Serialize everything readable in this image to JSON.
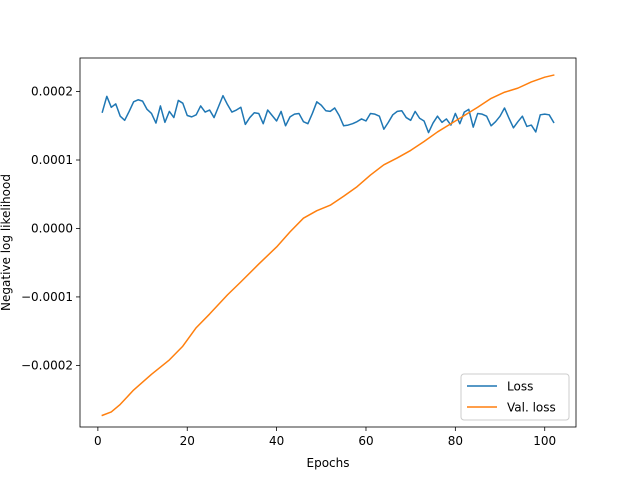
{
  "chart_data": {
    "type": "line",
    "title": "",
    "xlabel": "Epochs",
    "ylabel": "Negative log likelihood",
    "xlim": [
      -4,
      107
    ],
    "ylim": [
      -0.00029,
      0.000249
    ],
    "xticks": [
      0,
      20,
      40,
      60,
      80,
      100
    ],
    "xtick_labels": [
      "0",
      "20",
      "40",
      "60",
      "80",
      "100"
    ],
    "yticks": [
      -0.0002,
      -0.0001,
      0.0,
      0.0001,
      0.0002
    ],
    "ytick_labels": [
      "−0.0002",
      "−0.0001",
      "0.0000",
      "0.0001",
      "0.0002"
    ],
    "grid": false,
    "legend_position": "lower-right",
    "series": [
      {
        "name": "Loss",
        "color": "#1f77b4",
        "x_start": 1,
        "x_step": 1,
        "values": [
          0.00017,
          0.000193,
          0.000177,
          0.000182,
          0.000164,
          0.000158,
          0.000171,
          0.000185,
          0.000188,
          0.000186,
          0.000174,
          0.000168,
          0.000154,
          0.000179,
          0.000155,
          0.000171,
          0.000162,
          0.000187,
          0.000183,
          0.000165,
          0.000163,
          0.000166,
          0.000179,
          0.00017,
          0.000173,
          0.000162,
          0.000178,
          0.000194,
          0.000181,
          0.00017,
          0.000173,
          0.000177,
          0.000152,
          0.000162,
          0.000169,
          0.000168,
          0.000153,
          0.000173,
          0.000165,
          0.000157,
          0.000171,
          0.00015,
          0.000163,
          0.000167,
          0.000168,
          0.000156,
          0.000153,
          0.000168,
          0.000185,
          0.00018,
          0.000172,
          0.000171,
          0.000176,
          0.000165,
          0.00015,
          0.000151,
          0.000153,
          0.000156,
          0.00016,
          0.000157,
          0.000168,
          0.000167,
          0.000164,
          0.000145,
          0.000155,
          0.000166,
          0.000171,
          0.000172,
          0.000162,
          0.000158,
          0.000171,
          0.000161,
          0.000157,
          0.00014,
          0.000154,
          0.000164,
          0.000155,
          0.00016,
          0.000151,
          0.000168,
          0.000153,
          0.00017,
          0.000174,
          0.000148,
          0.000168,
          0.000167,
          0.000164,
          0.00015,
          0.000156,
          0.000164,
          0.000176,
          0.000161,
          0.000147,
          0.000156,
          0.000164,
          0.000149,
          0.000151,
          0.000141,
          0.000166,
          0.000167,
          0.000166,
          0.000155
        ]
      },
      {
        "name": "Val. loss",
        "color": "#ff7f0e",
        "x": [
          1,
          3,
          5,
          8,
          12,
          16,
          19,
          22,
          25,
          29,
          32,
          36,
          40,
          43,
          46,
          49,
          52,
          55,
          58,
          61,
          64,
          67,
          70,
          73,
          76,
          79,
          82,
          85,
          88,
          91,
          94,
          97,
          100,
          102
        ],
        "values": [
          -0.000273,
          -0.000268,
          -0.000257,
          -0.000236,
          -0.000213,
          -0.000192,
          -0.000172,
          -0.000145,
          -0.000125,
          -9.7e-05,
          -7.8e-05,
          -5.2e-05,
          -2.7e-05,
          -5e-06,
          1.5e-05,
          2.6e-05,
          3.4e-05,
          4.7e-05,
          6.1e-05,
          7.8e-05,
          9.3e-05,
          0.000103,
          0.000114,
          0.000127,
          0.000141,
          0.000153,
          0.000165,
          0.000177,
          0.00019,
          0.000199,
          0.000205,
          0.000214,
          0.000221,
          0.000224
        ]
      }
    ]
  }
}
